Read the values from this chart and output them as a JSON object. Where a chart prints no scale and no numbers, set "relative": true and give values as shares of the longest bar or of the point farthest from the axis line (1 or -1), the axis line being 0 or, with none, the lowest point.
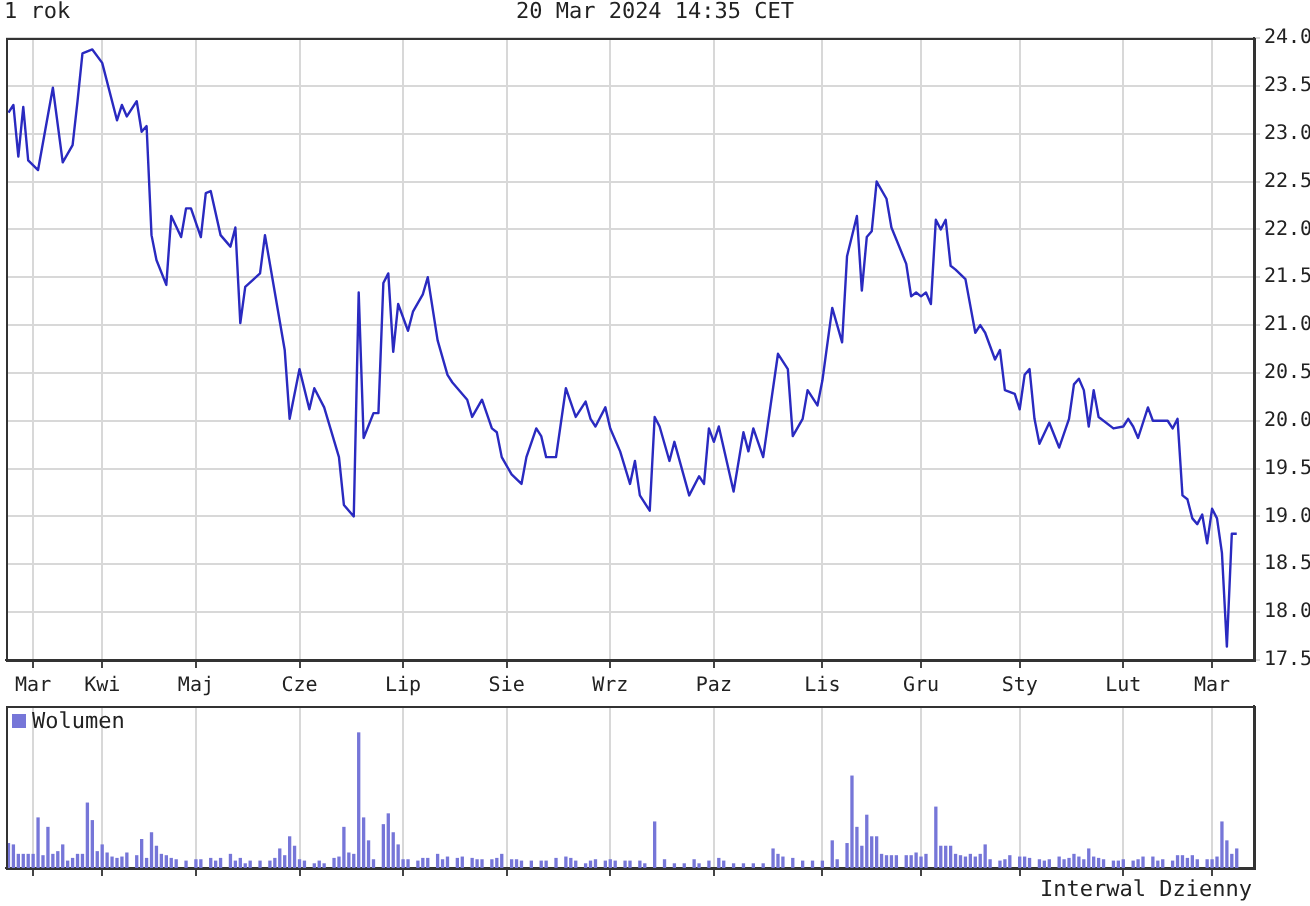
{
  "chart_data": [
    {
      "type": "line",
      "title": "1 rok",
      "annotations": [
        "20 Mar 2024 14:35 CET"
      ],
      "grid": true,
      "legend": false,
      "marker": "none",
      "line_style": "solid",
      "categories": [
        null,
        null,
        null,
        null,
        null,
        "Mar",
        null,
        null,
        null,
        null,
        null,
        null,
        null,
        null,
        null,
        null,
        null,
        null,
        null,
        "Kwi",
        null,
        null,
        null,
        null,
        null,
        null,
        null,
        null,
        null,
        null,
        null,
        null,
        null,
        null,
        null,
        null,
        null,
        null,
        "Maj",
        null,
        null,
        null,
        null,
        null,
        null,
        null,
        null,
        null,
        null,
        null,
        null,
        null,
        null,
        null,
        null,
        null,
        null,
        null,
        null,
        "Cze",
        null,
        null,
        null,
        null,
        null,
        null,
        null,
        null,
        null,
        null,
        null,
        null,
        null,
        null,
        null,
        null,
        null,
        null,
        null,
        null,
        "Lip",
        null,
        null,
        null,
        null,
        null,
        null,
        null,
        null,
        null,
        null,
        null,
        null,
        null,
        null,
        null,
        null,
        null,
        null,
        null,
        null,
        "Sie",
        null,
        null,
        null,
        null,
        null,
        null,
        null,
        null,
        null,
        null,
        null,
        null,
        null,
        null,
        null,
        null,
        null,
        null,
        null,
        null,
        "Wrz",
        null,
        null,
        null,
        null,
        null,
        null,
        null,
        null,
        null,
        null,
        null,
        null,
        null,
        null,
        null,
        null,
        null,
        null,
        null,
        null,
        "Paz",
        null,
        null,
        null,
        null,
        null,
        null,
        null,
        null,
        null,
        null,
        null,
        null,
        null,
        null,
        null,
        null,
        null,
        null,
        null,
        null,
        null,
        "Lis",
        null,
        null,
        null,
        null,
        null,
        null,
        null,
        null,
        null,
        null,
        null,
        null,
        null,
        null,
        null,
        null,
        null,
        null,
        null,
        "Gru",
        null,
        null,
        null,
        null,
        null,
        null,
        null,
        null,
        null,
        null,
        null,
        null,
        null,
        null,
        null,
        null,
        null,
        null,
        null,
        "Sty",
        null,
        null,
        null,
        null,
        null,
        null,
        null,
        null,
        null,
        null,
        null,
        null,
        null,
        null,
        null,
        null,
        null,
        null,
        null,
        null,
        "Lut",
        null,
        null,
        null,
        null,
        null,
        null,
        null,
        null,
        null,
        null,
        null,
        null,
        null,
        null,
        null,
        null,
        null,
        "Mar",
        null,
        null,
        null,
        null,
        null,
        null,
        null,
        null
      ],
      "ylim": [
        17.5,
        24
      ],
      "yticks": [
        {
          "value": 17.5,
          "label": "17.5"
        },
        {
          "value": 18,
          "label": "18.0"
        },
        {
          "value": 18.5,
          "label": "18.5"
        },
        {
          "value": 19,
          "label": "19.0"
        },
        {
          "value": 19.5,
          "label": "19.5"
        },
        {
          "value": 20,
          "label": "20.0"
        },
        {
          "value": 20.5,
          "label": "20.5"
        },
        {
          "value": 21,
          "label": "21.0"
        },
        {
          "value": 21.5,
          "label": "21.5"
        },
        {
          "value": 22,
          "label": "22.0"
        },
        {
          "value": 22.5,
          "label": "22.5"
        },
        {
          "value": 23,
          "label": "23.0"
        },
        {
          "value": 23.5,
          "label": "23.5"
        },
        {
          "value": 24,
          "label": "24.0"
        }
      ],
      "series": [
        {
          "color": "#2a2ac0",
          "values": [
            23.22,
            23.3,
            22.76,
            23.28,
            22.72,
            null,
            22.62,
            null,
            null,
            23.48,
            null,
            22.7,
            null,
            22.88,
            23.34,
            23.84,
            null,
            23.88,
            null,
            23.74,
            null,
            null,
            23.14,
            23.3,
            23.18,
            null,
            23.34,
            23.02,
            23.08,
            21.94,
            21.68,
            null,
            21.42,
            22.14,
            null,
            21.92,
            22.22,
            22.22,
            null,
            21.92,
            22.38,
            22.4,
            null,
            21.94,
            null,
            21.82,
            22.02,
            21.02,
            21.4,
            null,
            null,
            21.54,
            21.94,
            null,
            21.34,
            null,
            20.74,
            20.02,
            null,
            20.54,
            null,
            20.12,
            20.34,
            null,
            20.14,
            null,
            null,
            19.62,
            19.12,
            null,
            19.0,
            21.34,
            19.82,
            null,
            20.08,
            20.08,
            21.44,
            21.54,
            20.72,
            21.22,
            null,
            20.94,
            21.14,
            null,
            21.32,
            21.5,
            null,
            20.84,
            null,
            20.48,
            20.4,
            null,
            null,
            20.22,
            20.04,
            null,
            20.22,
            null,
            19.92,
            19.88,
            19.62,
            null,
            19.44,
            null,
            19.34,
            19.62,
            null,
            19.92,
            19.84,
            19.62,
            null,
            19.62,
            null,
            20.34,
            null,
            20.04,
            null,
            20.2,
            20.02,
            19.94,
            null,
            20.14,
            19.92,
            null,
            19.68,
            null,
            19.34,
            19.58,
            19.22,
            null,
            19.06,
            20.04,
            19.94,
            null,
            19.58,
            19.78,
            null,
            null,
            19.22,
            null,
            19.42,
            19.34,
            19.92,
            19.78,
            19.94,
            null,
            null,
            19.26,
            null,
            19.88,
            19.68,
            19.92,
            null,
            19.62,
            null,
            null,
            20.7,
            null,
            20.54,
            19.84,
            null,
            20.02,
            20.32,
            null,
            20.16,
            20.42,
            null,
            21.18,
            null,
            20.82,
            21.72,
            null,
            22.14,
            21.36,
            21.92,
            21.98,
            22.5,
            null,
            22.32,
            22.02,
            null,
            null,
            21.64,
            21.3,
            21.34,
            21.3,
            21.34,
            21.22,
            22.1,
            22.0,
            22.1,
            21.62,
            21.58,
            null,
            21.48,
            null,
            20.92,
            21.0,
            20.92,
            null,
            20.64,
            20.74,
            20.32,
            null,
            20.28,
            20.12,
            20.48,
            20.54,
            20.02,
            19.76,
            null,
            19.98,
            null,
            19.72,
            null,
            20.02,
            20.38,
            20.44,
            20.32,
            19.94,
            20.32,
            20.04,
            null,
            null,
            19.92,
            null,
            19.94,
            20.02,
            19.94,
            19.82,
            null,
            20.14,
            20.0,
            null,
            null,
            20.0,
            19.92,
            20.02,
            19.22,
            19.18,
            18.98,
            18.92,
            19.02,
            18.72,
            19.08,
            18.98,
            18.62,
            17.64,
            18.82,
            18.82,
            null,
            null,
            null
          ]
        }
      ]
    },
    {
      "type": "bar",
      "relative": true,
      "annotations": [
        "Interwal Dzienny"
      ],
      "grid": "x",
      "legend": "top left",
      "tick_labels": false,
      "categories": [
        null,
        null,
        null,
        null,
        null,
        null,
        null,
        null,
        null,
        null,
        null,
        null,
        null,
        null,
        null,
        null,
        null,
        null,
        null,
        null,
        null,
        null,
        null,
        null,
        null,
        null,
        null,
        null,
        null,
        null,
        null,
        null,
        null,
        null,
        null,
        null,
        null,
        null,
        null,
        null,
        null,
        null,
        null,
        null,
        null,
        null,
        null,
        null,
        null,
        null,
        null,
        null,
        null,
        null,
        null,
        null,
        null,
        null,
        null,
        null,
        null,
        null,
        null,
        null,
        null,
        null,
        null,
        null,
        null,
        null,
        null,
        null,
        null,
        null,
        null,
        null,
        null,
        null,
        null,
        null,
        null,
        null,
        null,
        null,
        null,
        null,
        null,
        null,
        null,
        null,
        null,
        null,
        null,
        null,
        null,
        null,
        null,
        null,
        null,
        null,
        null,
        null,
        null,
        null,
        null,
        null,
        null,
        null,
        null,
        null,
        null,
        null,
        null,
        null,
        null,
        null,
        null,
        null,
        null,
        null,
        null,
        null,
        null,
        null,
        null,
        null,
        null,
        null,
        null,
        null,
        null,
        null,
        null,
        null,
        null,
        null,
        null,
        null,
        null,
        null,
        null,
        null,
        null,
        null,
        null,
        null,
        null,
        null,
        null,
        null,
        null,
        null,
        null,
        null,
        null,
        null,
        null,
        null,
        null,
        null,
        null,
        null,
        null,
        null,
        null,
        null,
        null,
        null,
        null,
        null,
        null,
        null,
        null,
        null,
        null,
        null,
        null,
        null,
        null,
        null,
        null,
        null,
        null,
        null,
        null,
        null,
        null,
        null,
        null,
        null,
        null,
        null,
        null,
        null,
        null,
        null,
        null,
        null,
        null,
        null,
        null,
        null,
        null,
        null,
        null,
        null,
        null,
        null,
        null,
        null,
        null,
        null,
        null,
        null,
        null,
        null,
        null,
        null,
        null,
        null,
        null,
        null,
        null,
        null,
        null,
        null,
        null,
        null,
        null,
        null,
        null,
        null,
        null,
        null,
        null,
        null,
        null,
        null,
        null,
        null,
        null,
        null,
        null,
        null,
        null,
        null,
        null,
        null,
        null,
        null,
        null,
        null,
        null
      ],
      "series": [
        {
          "name": "Wolumen",
          "color": "#7676d8",
          "values": [
            0.18,
            0.17,
            0.1,
            0.1,
            0.1,
            0.1,
            0.37,
            0.09,
            0.3,
            0.1,
            0.12,
            0.17,
            0.05,
            0.07,
            0.1,
            0.1,
            0.48,
            0.35,
            0.12,
            0.17,
            0.11,
            0.08,
            0.07,
            0.08,
            0.11,
            null,
            0.09,
            0.21,
            0.07,
            0.26,
            0.16,
            0.1,
            0.09,
            0.07,
            0.06,
            null,
            0.05,
            null,
            0.06,
            0.06,
            null,
            0.07,
            0.05,
            0.07,
            null,
            0.1,
            0.05,
            0.07,
            0.03,
            0.05,
            null,
            0.05,
            null,
            0.05,
            0.07,
            0.14,
            0.09,
            0.23,
            0.16,
            0.06,
            0.05,
            null,
            0.03,
            0.05,
            0.03,
            null,
            0.07,
            0.08,
            0.3,
            0.11,
            0.1,
            1.0,
            0.37,
            0.2,
            0.06,
            null,
            0.32,
            0.4,
            0.26,
            0.17,
            0.06,
            0.06,
            null,
            0.05,
            0.07,
            0.07,
            null,
            0.1,
            0.06,
            0.08,
            null,
            0.07,
            0.08,
            null,
            0.07,
            0.06,
            0.06,
            null,
            0.06,
            0.07,
            0.1,
            null,
            0.06,
            0.06,
            0.05,
            null,
            0.05,
            null,
            0.05,
            0.05,
            null,
            0.07,
            null,
            0.08,
            0.07,
            0.05,
            null,
            0.03,
            0.05,
            0.06,
            null,
            0.05,
            0.06,
            0.05,
            null,
            0.05,
            0.05,
            null,
            0.05,
            0.03,
            null,
            0.34,
            null,
            0.06,
            null,
            0.03,
            null,
            0.03,
            null,
            0.06,
            0.03,
            null,
            0.05,
            null,
            0.07,
            0.05,
            null,
            0.03,
            null,
            0.03,
            null,
            0.03,
            null,
            0.03,
            null,
            0.14,
            0.1,
            0.08,
            null,
            0.07,
            null,
            0.05,
            null,
            0.05,
            null,
            0.05,
            null,
            0.2,
            0.06,
            null,
            0.18,
            0.68,
            0.3,
            0.16,
            0.39,
            0.23,
            0.23,
            0.1,
            0.09,
            0.09,
            0.09,
            null,
            0.09,
            0.09,
            0.11,
            0.08,
            0.1,
            null,
            0.45,
            0.16,
            0.16,
            0.16,
            0.1,
            0.09,
            0.08,
            0.1,
            0.08,
            0.1,
            0.17,
            0.06,
            null,
            0.05,
            0.06,
            0.09,
            null,
            0.08,
            0.08,
            0.07,
            null,
            0.06,
            0.05,
            0.06,
            null,
            0.08,
            0.06,
            0.07,
            0.1,
            0.08,
            0.06,
            0.14,
            0.08,
            0.07,
            0.06,
            null,
            0.05,
            0.05,
            0.06,
            null,
            0.05,
            0.06,
            0.08,
            null,
            0.08,
            0.05,
            0.06,
            null,
            0.05,
            0.09,
            0.09,
            0.07,
            0.09,
            0.06,
            null,
            0.06,
            0.06,
            0.08,
            0.34,
            0.2,
            0.1,
            0.14,
            null,
            null,
            null
          ]
        }
      ]
    }
  ]
}
